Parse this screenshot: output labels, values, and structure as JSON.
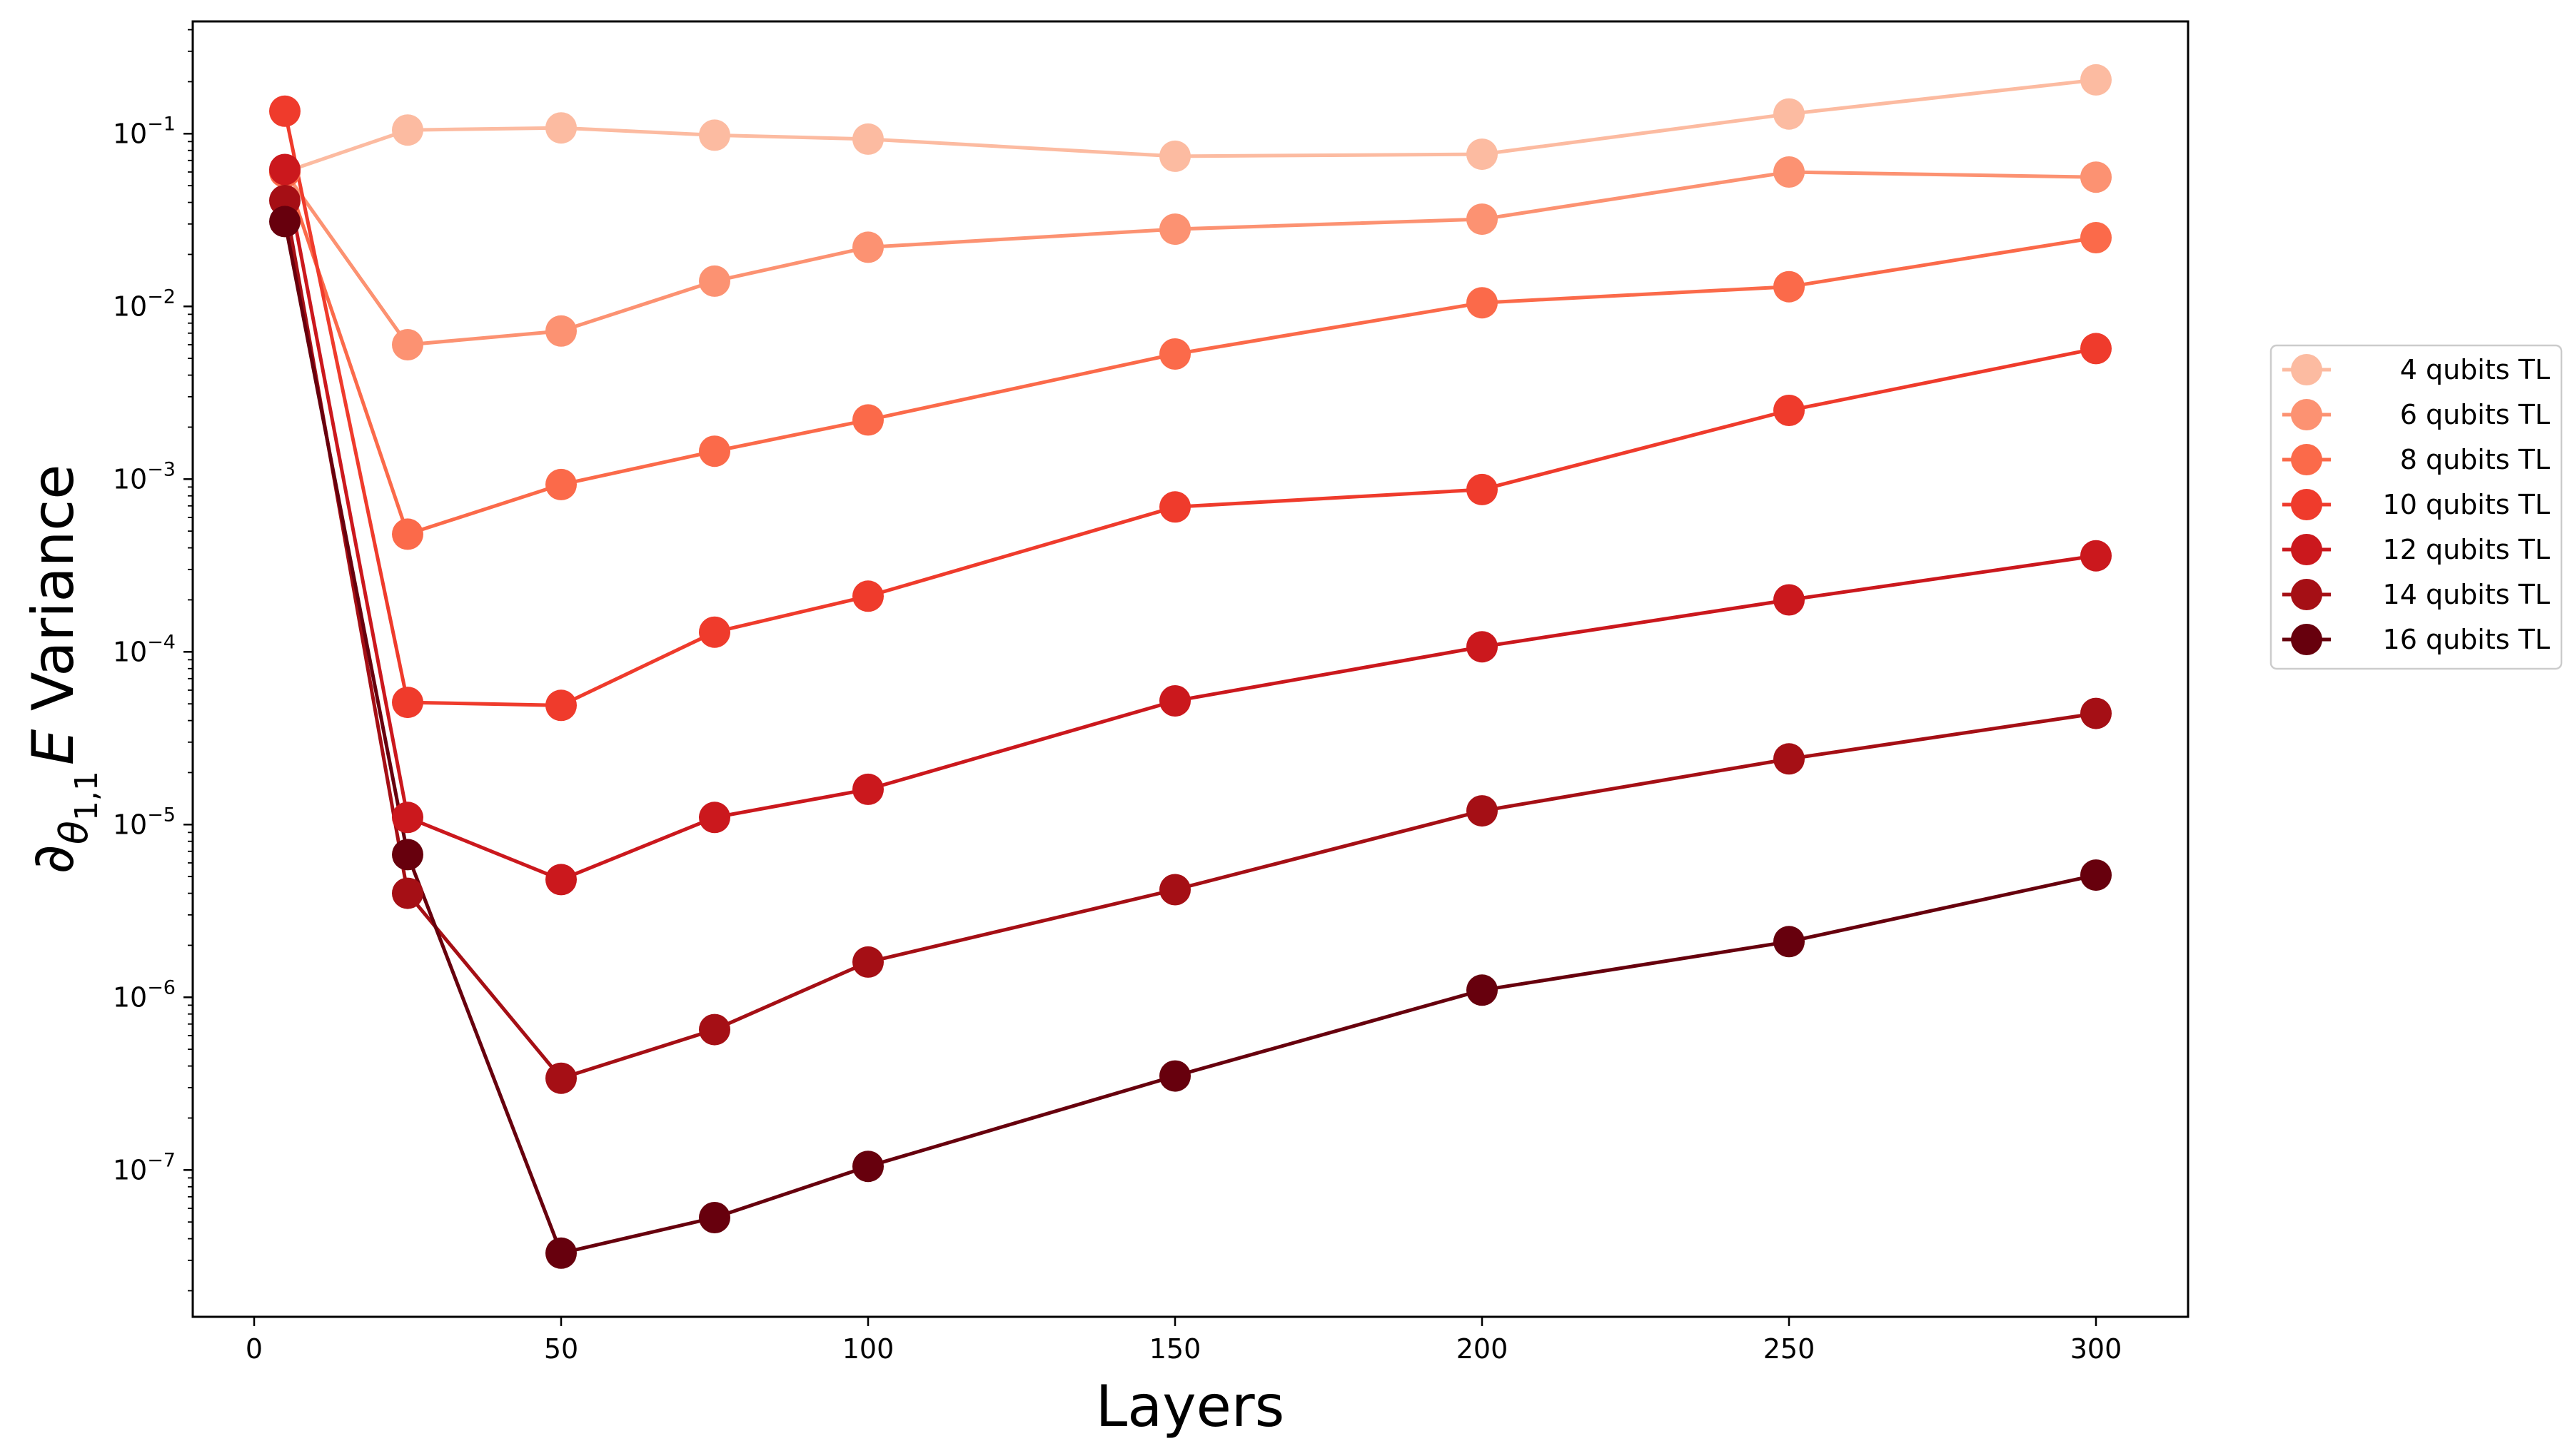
{
  "chart_data": {
    "type": "line",
    "xlabel": "Layers",
    "ylabel_prefix": "∂",
    "ylabel_sub_symbol": "θ",
    "ylabel_sub_index": "1,1",
    "ylabel_var": "E",
    "ylabel_suffix": " Variance",
    "yscale": "log",
    "xlim": [
      -10,
      315
    ],
    "ylim_exp": [
      -7.85,
      -0.35
    ],
    "x_ticks": [
      0,
      50,
      100,
      150,
      200,
      250,
      300
    ],
    "y_tick_exps": [
      -7,
      -6,
      -5,
      -4,
      -3,
      -2,
      -1
    ],
    "y_tick_base": "10",
    "legend_position": "center-right, outside plot",
    "grid": false,
    "x": [
      5,
      25,
      50,
      75,
      100,
      150,
      200,
      250,
      300
    ],
    "series": [
      {
        "name": "4 qubits TL",
        "color": "#fcbba1",
        "values": [
          0.06,
          0.105,
          0.108,
          0.098,
          0.093,
          0.074,
          0.076,
          0.13,
          0.205
        ]
      },
      {
        "name": "6 qubits TL",
        "color": "#fc9272",
        "values": [
          0.06,
          0.006,
          0.0072,
          0.014,
          0.022,
          0.028,
          0.032,
          0.06,
          0.056
        ]
      },
      {
        "name": "8 qubits TL",
        "color": "#fb6a4a",
        "values": [
          0.06,
          0.00048,
          0.00093,
          0.00145,
          0.0022,
          0.0053,
          0.0105,
          0.013,
          0.025
        ]
      },
      {
        "name": "10 qubits TL",
        "color": "#ef3b2c",
        "values": [
          0.135,
          5.1e-05,
          4.9e-05,
          0.00013,
          0.00021,
          0.00069,
          0.00087,
          0.0025,
          0.0057
        ]
      },
      {
        "name": "12 qubits TL",
        "color": "#cb181d",
        "values": [
          0.062,
          1.1e-05,
          4.8e-06,
          1.1e-05,
          1.6e-05,
          5.2e-05,
          0.000107,
          0.0002,
          0.00036
        ]
      },
      {
        "name": "14 qubits TL",
        "color": "#a50f15",
        "values": [
          0.041,
          4e-06,
          3.4e-07,
          6.5e-07,
          1.6e-06,
          4.2e-06,
          1.2e-05,
          2.4e-05,
          4.4e-05
        ]
      },
      {
        "name": "16 qubits TL",
        "color": "#67000d",
        "values": [
          0.031,
          6.7e-06,
          3.3e-08,
          5.3e-08,
          1.05e-07,
          3.5e-07,
          1.1e-06,
          2.1e-06,
          5.1e-06
        ]
      }
    ]
  }
}
